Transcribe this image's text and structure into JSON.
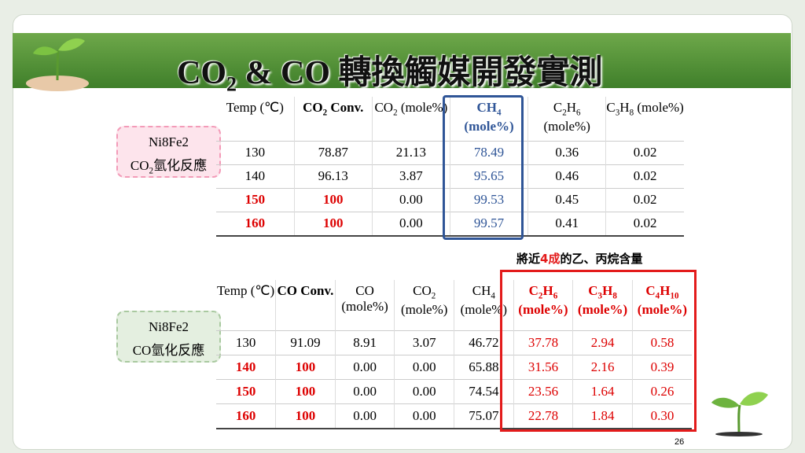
{
  "title": "CO2 & CO 轉換觸媒開發實測",
  "page_number": "26",
  "annotation": [
    "將近",
    "4成",
    "的乙、丙烷含量"
  ],
  "tables": [
    {
      "label": [
        "Ni8Fe2",
        "CO2氫化反應"
      ],
      "headers": [
        "Temp (℃)",
        "CO2 Conv.",
        "CO2 (mole%)",
        "CH4 (mole%)",
        "C2H6 (mole%)",
        "C3H8 (mole%)"
      ],
      "rows": [
        [
          "130",
          "78.87",
          "21.13",
          "78.49",
          "0.36",
          "0.02"
        ],
        [
          "140",
          "96.13",
          "3.87",
          "95.65",
          "0.46",
          "0.02"
        ],
        [
          "150",
          "100",
          "0.00",
          "99.53",
          "0.45",
          "0.02"
        ],
        [
          "160",
          "100",
          "0.00",
          "99.57",
          "0.41",
          "0.02"
        ]
      ]
    },
    {
      "label": [
        "Ni8Fe2",
        "CO氫化反應"
      ],
      "headers": [
        "Temp (℃)",
        "CO Conv.",
        "CO (mole%)",
        "CO2 (mole%)",
        "CH4 (mole%)",
        "C2H6 (mole%)",
        "C3H8 (mole%)",
        "C4H10 (mole%)"
      ],
      "rows": [
        [
          "130",
          "91.09",
          "8.91",
          "3.07",
          "46.72",
          "37.78",
          "2.94",
          "0.58"
        ],
        [
          "140",
          "100",
          "0.00",
          "0.00",
          "65.88",
          "31.56",
          "2.16",
          "0.39"
        ],
        [
          "150",
          "100",
          "0.00",
          "0.00",
          "74.54",
          "23.56",
          "1.64",
          "0.26"
        ],
        [
          "160",
          "100",
          "0.00",
          "0.00",
          "75.07",
          "22.78",
          "1.84",
          "0.30"
        ]
      ]
    }
  ]
}
